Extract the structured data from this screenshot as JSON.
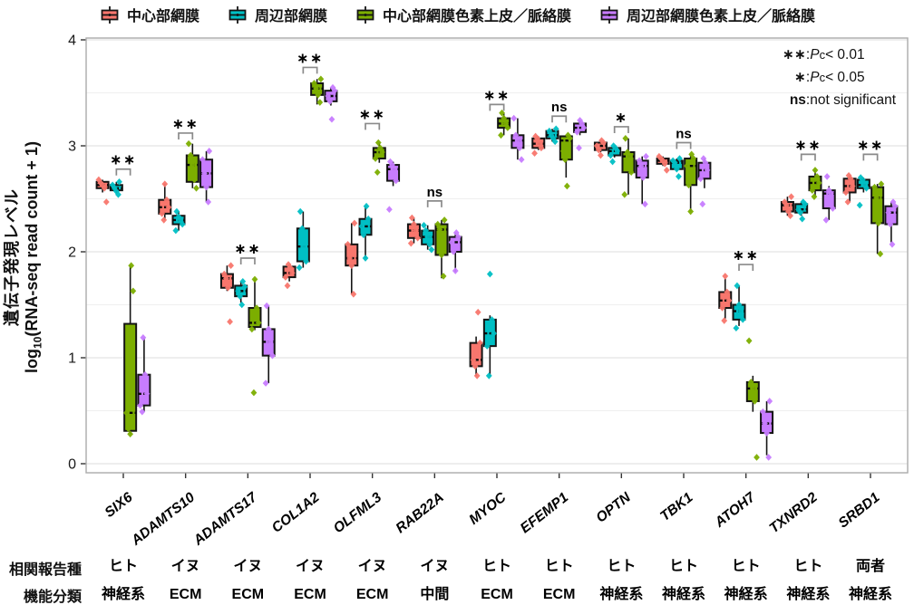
{
  "colors": {
    "series": [
      "#F8766D",
      "#00BFC4",
      "#7CAE00",
      "#C77CFF"
    ],
    "box_border": "#141414",
    "bracket": "#8a8a8a",
    "grid_major": "#e3e3e3",
    "grid_minor": "#efefef",
    "panel_border": "#ababab",
    "tick": "#333333"
  },
  "legend": {
    "items": [
      {
        "label": "中心部網膜",
        "color_key": 0
      },
      {
        "label": "周辺部網膜",
        "color_key": 1
      },
      {
        "label": "中心部網膜色素上皮／脈絡膜",
        "color_key": 2
      },
      {
        "label": "周辺部網膜色素上皮／脈絡膜",
        "color_key": 3
      }
    ]
  },
  "sig_legend": {
    "rows": [
      {
        "sym": "∗∗",
        "colon": " : ",
        "p": "P",
        "c": "c",
        "rest": " < 0.01"
      },
      {
        "sym": "∗",
        "colon": " : ",
        "p": "P",
        "c": "c",
        "rest": " < 0.05"
      },
      {
        "sym": "ns",
        "colon": " : ",
        "p": "",
        "c": "",
        "rest": "not significant"
      }
    ]
  },
  "y_axis": {
    "title_jp": "遺伝子発現レベル",
    "title_en_prefix": "log",
    "title_en_sub": "10",
    "title_en_suffix": "(RNA-seq read count + 1)"
  },
  "annotation_rows": {
    "species_header": "相関報告種",
    "function_header": "機能分類"
  },
  "chart_data": {
    "type": "boxplot",
    "ylabel": "遺伝子発現レベル log10(RNA-seq read count + 1)",
    "ylim": [
      0,
      4
    ],
    "yticks": [
      0,
      1,
      2,
      3,
      4
    ],
    "grid_step": 0.5,
    "legend_position": "top",
    "series": [
      "中心部網膜",
      "周辺部網膜",
      "中心部網膜色素上皮／脈絡膜",
      "周辺部網膜色素上皮／脈絡膜"
    ],
    "series_colors": [
      "#F8766D",
      "#00BFC4",
      "#7CAE00",
      "#C77CFF"
    ],
    "sig_note": {
      "**": "Pc < 0.01",
      "*": "Pc < 0.05",
      "ns": "not significant"
    },
    "genes": [
      {
        "name": "SIX6",
        "species": "ヒト",
        "function": "神経系",
        "sig": "**",
        "sig_y": 2.78,
        "boxes": [
          {
            "lo": 2.56,
            "q1": 2.6,
            "med": 2.63,
            "q3": 2.66,
            "hi": 2.68,
            "points": [
              2.68,
              2.65,
              2.63,
              2.6,
              2.47
            ]
          },
          {
            "lo": 2.55,
            "q1": 2.58,
            "med": 2.6,
            "q3": 2.63,
            "hi": 2.66,
            "points": [
              2.66,
              2.63,
              2.6,
              2.57,
              2.54
            ]
          },
          {
            "lo": 0.28,
            "q1": 0.31,
            "med": 0.48,
            "q3": 1.32,
            "hi": 1.87,
            "points": [
              1.87,
              1.63,
              0.48,
              0.33,
              0.28
            ]
          },
          {
            "lo": 0.49,
            "q1": 0.55,
            "med": 0.66,
            "q3": 0.84,
            "hi": 1.19,
            "points": [
              1.19,
              0.84,
              0.66,
              0.55,
              0.49
            ]
          }
        ]
      },
      {
        "name": "ADAMTS10",
        "species": "イヌ",
        "function": "ECM",
        "sig": "**",
        "sig_y": 3.12,
        "boxes": [
          {
            "lo": 2.3,
            "q1": 2.36,
            "med": 2.42,
            "q3": 2.49,
            "hi": 2.64,
            "points": [
              2.64,
              2.49,
              2.42,
              2.36,
              2.3
            ]
          },
          {
            "lo": 2.2,
            "q1": 2.26,
            "med": 2.3,
            "q3": 2.34,
            "hi": 2.38,
            "points": [
              2.38,
              2.33,
              2.3,
              2.26,
              2.2
            ]
          },
          {
            "lo": 2.6,
            "q1": 2.66,
            "med": 2.82,
            "q3": 2.91,
            "hi": 3.02,
            "points": [
              3.02,
              2.91,
              2.82,
              2.68,
              2.6
            ]
          },
          {
            "lo": 2.47,
            "q1": 2.61,
            "med": 2.74,
            "q3": 2.87,
            "hi": 2.95,
            "points": [
              2.95,
              2.87,
              2.74,
              2.61,
              2.47
            ]
          }
        ]
      },
      {
        "name": "ADAMTS17",
        "species": "イヌ",
        "function": "ECM",
        "sig": "**",
        "sig_y": 1.94,
        "boxes": [
          {
            "lo": 1.63,
            "q1": 1.66,
            "med": 1.75,
            "q3": 1.79,
            "hi": 1.87,
            "points": [
              1.87,
              1.79,
              1.75,
              1.66,
              1.34
            ]
          },
          {
            "lo": 1.52,
            "q1": 1.58,
            "med": 1.63,
            "q3": 1.68,
            "hi": 1.72,
            "points": [
              1.72,
              1.67,
              1.63,
              1.58,
              1.5
            ]
          },
          {
            "lo": 1.26,
            "q1": 1.29,
            "med": 1.33,
            "q3": 1.47,
            "hi": 1.74,
            "points": [
              1.74,
              1.47,
              1.33,
              1.27,
              0.67
            ]
          },
          {
            "lo": 0.76,
            "q1": 1.02,
            "med": 1.15,
            "q3": 1.27,
            "hi": 1.49,
            "points": [
              1.49,
              1.27,
              1.15,
              1.02,
              0.76
            ]
          }
        ]
      },
      {
        "name": "COL1A2",
        "species": "イヌ",
        "function": "ECM",
        "sig": "**",
        "sig_y": 3.74,
        "boxes": [
          {
            "lo": 1.72,
            "q1": 1.76,
            "med": 1.8,
            "q3": 1.86,
            "hi": 1.88,
            "points": [
              1.88,
              1.85,
              1.8,
              1.76,
              1.68
            ]
          },
          {
            "lo": 1.85,
            "q1": 1.91,
            "med": 2.05,
            "q3": 2.22,
            "hi": 2.38,
            "points": [
              2.38,
              2.22,
              2.05,
              1.91,
              1.85
            ]
          },
          {
            "lo": 3.39,
            "q1": 3.48,
            "med": 3.54,
            "q3": 3.59,
            "hi": 3.63,
            "points": [
              3.63,
              3.59,
              3.54,
              3.48,
              3.41
            ]
          },
          {
            "lo": 3.38,
            "q1": 3.42,
            "med": 3.47,
            "q3": 3.52,
            "hi": 3.55,
            "points": [
              3.55,
              3.52,
              3.47,
              3.42,
              3.25
            ]
          }
        ]
      },
      {
        "name": "OLFML3",
        "species": "イヌ",
        "function": "ECM",
        "sig": "**",
        "sig_y": 3.21,
        "boxes": [
          {
            "lo": 1.6,
            "q1": 1.87,
            "med": 1.94,
            "q3": 2.07,
            "hi": 2.27,
            "points": [
              2.27,
              2.07,
              1.94,
              1.87,
              1.6
            ]
          },
          {
            "lo": 1.94,
            "q1": 2.16,
            "med": 2.24,
            "q3": 2.31,
            "hi": 2.43,
            "points": [
              2.43,
              2.31,
              2.24,
              2.16,
              1.94
            ]
          },
          {
            "lo": 2.84,
            "q1": 2.88,
            "med": 2.94,
            "q3": 2.98,
            "hi": 3.03,
            "points": [
              3.03,
              2.98,
              2.94,
              2.88,
              2.75
            ]
          },
          {
            "lo": 2.62,
            "q1": 2.67,
            "med": 2.78,
            "q3": 2.82,
            "hi": 2.85,
            "points": [
              2.85,
              2.82,
              2.78,
              2.67,
              2.4
            ]
          }
        ]
      },
      {
        "name": "RAB22A",
        "species": "イヌ",
        "function": "中間",
        "sig": "ns",
        "sig_y": 2.48,
        "boxes": [
          {
            "lo": 2.08,
            "q1": 2.13,
            "med": 2.2,
            "q3": 2.26,
            "hi": 2.32,
            "points": [
              2.32,
              2.26,
              2.2,
              2.13,
              2.08
            ]
          },
          {
            "lo": 2.02,
            "q1": 2.07,
            "med": 2.14,
            "q3": 2.2,
            "hi": 2.25,
            "points": [
              2.25,
              2.2,
              2.14,
              2.07,
              2.02
            ]
          },
          {
            "lo": 1.75,
            "q1": 1.97,
            "med": 2.21,
            "q3": 2.26,
            "hi": 2.3,
            "points": [
              2.3,
              2.26,
              2.21,
              1.97,
              1.77
            ]
          },
          {
            "lo": 1.81,
            "q1": 2.0,
            "med": 2.09,
            "q3": 2.14,
            "hi": 2.18,
            "points": [
              2.18,
              2.14,
              2.09,
              2.0,
              1.82
            ]
          }
        ]
      },
      {
        "name": "MYOC",
        "species": "ヒト",
        "function": "ECM",
        "sig": "**",
        "sig_y": 3.39,
        "boxes": [
          {
            "lo": 0.83,
            "q1": 0.92,
            "med": 0.98,
            "q3": 1.14,
            "hi": 1.2,
            "points": [
              1.43,
              1.14,
              0.98,
              0.92,
              0.83
            ]
          },
          {
            "lo": 0.83,
            "q1": 1.11,
            "med": 1.23,
            "q3": 1.36,
            "hi": 1.4,
            "points": [
              1.79,
              1.36,
              1.23,
              1.11,
              0.83
            ]
          },
          {
            "lo": 3.1,
            "q1": 3.17,
            "med": 3.21,
            "q3": 3.26,
            "hi": 3.31,
            "points": [
              3.31,
              3.26,
              3.21,
              3.17,
              3.1
            ]
          },
          {
            "lo": 2.87,
            "q1": 2.98,
            "med": 3.05,
            "q3": 3.1,
            "hi": 3.26,
            "points": [
              3.26,
              3.1,
              3.05,
              2.98,
              2.87
            ]
          }
        ]
      },
      {
        "name": "EFEMP1",
        "species": "ヒト",
        "function": "ECM",
        "sig": "ns",
        "sig_y": 3.28,
        "boxes": [
          {
            "lo": 2.96,
            "q1": 2.98,
            "med": 3.02,
            "q3": 3.07,
            "hi": 3.09,
            "points": [
              3.09,
              3.07,
              3.02,
              2.98,
              2.93
            ]
          },
          {
            "lo": 3.04,
            "q1": 3.07,
            "med": 3.1,
            "q3": 3.14,
            "hi": 3.16,
            "points": [
              3.16,
              3.14,
              3.1,
              3.07,
              3.04
            ]
          },
          {
            "lo": 2.7,
            "q1": 2.87,
            "med": 3.05,
            "q3": 3.09,
            "hi": 3.1,
            "points": [
              3.1,
              3.07,
              2.95,
              2.87,
              2.62
            ]
          },
          {
            "lo": 3.1,
            "q1": 3.13,
            "med": 3.17,
            "q3": 3.21,
            "hi": 3.24,
            "points": [
              3.24,
              3.21,
              3.17,
              3.13,
              2.98
            ]
          }
        ]
      },
      {
        "name": "OPTN",
        "species": "ヒト",
        "function": "神経系",
        "sig": "*",
        "sig_y": 3.18,
        "boxes": [
          {
            "lo": 2.94,
            "q1": 2.96,
            "med": 3.0,
            "q3": 3.03,
            "hi": 3.05,
            "points": [
              3.05,
              3.03,
              3.0,
              2.96,
              2.91
            ]
          },
          {
            "lo": 2.89,
            "q1": 2.91,
            "med": 2.95,
            "q3": 2.98,
            "hi": 3.0,
            "points": [
              3.0,
              2.98,
              2.95,
              2.91,
              2.85
            ]
          },
          {
            "lo": 2.54,
            "q1": 2.75,
            "med": 2.9,
            "q3": 2.94,
            "hi": 3.07,
            "points": [
              3.07,
              2.94,
              2.9,
              2.75,
              2.54
            ]
          },
          {
            "lo": 2.45,
            "q1": 2.7,
            "med": 2.81,
            "q3": 2.86,
            "hi": 2.9,
            "points": [
              2.9,
              2.86,
              2.81,
              2.7,
              2.45
            ]
          }
        ]
      },
      {
        "name": "TBK1",
        "species": "ヒト",
        "function": "神経系",
        "sig": "ns",
        "sig_y": 3.03,
        "boxes": [
          {
            "lo": 2.81,
            "q1": 2.83,
            "med": 2.86,
            "q3": 2.88,
            "hi": 2.9,
            "points": [
              2.9,
              2.88,
              2.86,
              2.83,
              2.77
            ]
          },
          {
            "lo": 2.76,
            "q1": 2.78,
            "med": 2.84,
            "q3": 2.86,
            "hi": 2.88,
            "points": [
              2.88,
              2.86,
              2.84,
              2.78,
              2.71
            ]
          },
          {
            "lo": 2.38,
            "q1": 2.63,
            "med": 2.81,
            "q3": 2.88,
            "hi": 2.92,
            "points": [
              2.92,
              2.88,
              2.81,
              2.63,
              2.38
            ]
          },
          {
            "lo": 2.6,
            "q1": 2.69,
            "med": 2.77,
            "q3": 2.84,
            "hi": 2.88,
            "points": [
              2.88,
              2.84,
              2.77,
              2.69,
              2.45
            ]
          }
        ]
      },
      {
        "name": "ATOH7",
        "species": "ヒト",
        "function": "神経系",
        "sig": "**",
        "sig_y": 1.88,
        "boxes": [
          {
            "lo": 1.37,
            "q1": 1.47,
            "med": 1.54,
            "q3": 1.62,
            "hi": 1.75,
            "points": [
              1.77,
              1.62,
              1.54,
              1.47,
              1.35
            ]
          },
          {
            "lo": 1.3,
            "q1": 1.36,
            "med": 1.44,
            "q3": 1.5,
            "hi": 1.68,
            "points": [
              1.68,
              1.5,
              1.44,
              1.36,
              1.28
            ]
          },
          {
            "lo": 0.49,
            "q1": 0.59,
            "med": 0.71,
            "q3": 0.77,
            "hi": 0.83,
            "points": [
              1.16,
              0.77,
              0.71,
              0.59,
              0.06
            ]
          },
          {
            "lo": 0.08,
            "q1": 0.29,
            "med": 0.38,
            "q3": 0.49,
            "hi": 0.59,
            "points": [
              0.59,
              0.49,
              0.38,
              0.29,
              0.06
            ]
          }
        ]
      },
      {
        "name": "TXNRD2",
        "species": "ヒト",
        "function": "神経系",
        "sig": "**",
        "sig_y": 2.92,
        "boxes": [
          {
            "lo": 2.34,
            "q1": 2.38,
            "med": 2.44,
            "q3": 2.47,
            "hi": 2.52,
            "points": [
              2.52,
              2.47,
              2.44,
              2.38,
              2.34
            ]
          },
          {
            "lo": 2.34,
            "q1": 2.37,
            "med": 2.4,
            "q3": 2.45,
            "hi": 2.47,
            "points": [
              2.47,
              2.45,
              2.4,
              2.37,
              2.31
            ]
          },
          {
            "lo": 2.52,
            "q1": 2.58,
            "med": 2.65,
            "q3": 2.71,
            "hi": 2.77,
            "points": [
              2.77,
              2.71,
              2.65,
              2.58,
              2.52
            ]
          },
          {
            "lo": 2.3,
            "q1": 2.41,
            "med": 2.55,
            "q3": 2.58,
            "hi": 2.62,
            "points": [
              2.71,
              2.58,
              2.55,
              2.41,
              2.3
            ]
          }
        ]
      },
      {
        "name": "SRBD1",
        "species": "両者",
        "function": "神経系",
        "sig": "**",
        "sig_y": 2.92,
        "boxes": [
          {
            "lo": 2.47,
            "q1": 2.56,
            "med": 2.62,
            "q3": 2.69,
            "hi": 2.72,
            "points": [
              2.72,
              2.69,
              2.62,
              2.56,
              2.47
            ]
          },
          {
            "lo": 2.56,
            "q1": 2.6,
            "med": 2.63,
            "q3": 2.68,
            "hi": 2.7,
            "points": [
              2.7,
              2.68,
              2.63,
              2.6,
              2.44
            ]
          },
          {
            "lo": 1.98,
            "q1": 2.27,
            "med": 2.51,
            "q3": 2.61,
            "hi": 2.64,
            "points": [
              2.64,
              2.61,
              2.51,
              2.27,
              1.98
            ]
          },
          {
            "lo": 2.09,
            "q1": 2.26,
            "med": 2.37,
            "q3": 2.43,
            "hi": 2.47,
            "points": [
              2.47,
              2.43,
              2.37,
              2.26,
              2.07
            ]
          }
        ]
      }
    ]
  }
}
